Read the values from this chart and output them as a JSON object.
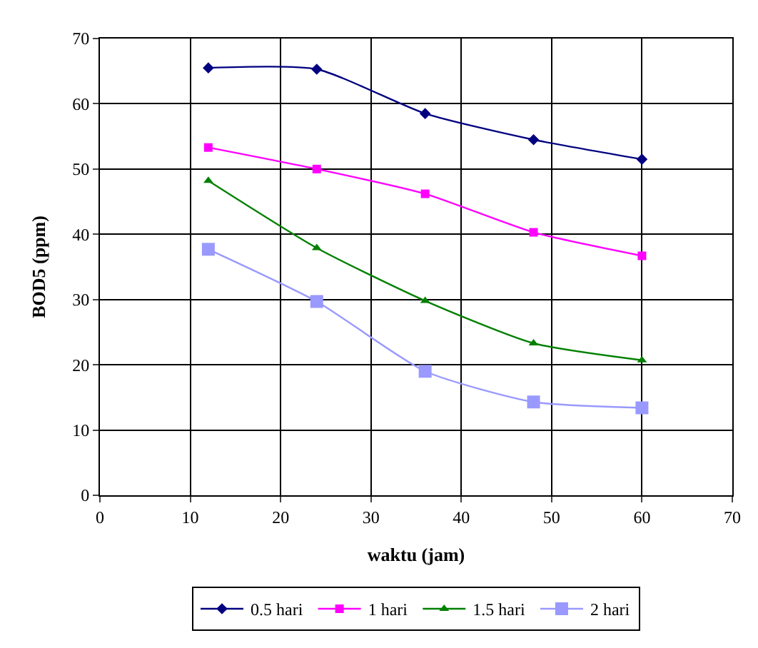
{
  "chart_data": {
    "type": "line",
    "xlabel": "waktu (jam)",
    "ylabel": "BOD5 (ppm)",
    "x": [
      12,
      24,
      36,
      48,
      60
    ],
    "series": [
      {
        "name": "0.5 hari",
        "color": "#000080",
        "marker": "diamond",
        "values": [
          65.5,
          65.3,
          58.5,
          54.5,
          51.5
        ]
      },
      {
        "name": "1 hari",
        "color": "#ff00ff",
        "marker": "square",
        "values": [
          53.3,
          50,
          46.2,
          40.3,
          36.7
        ]
      },
      {
        "name": "1.5 hari",
        "color": "#008000",
        "marker": "triangle",
        "values": [
          48.2,
          37.9,
          29.8,
          23.3,
          20.7
        ]
      },
      {
        "name": "2 hari",
        "color": "#9999ff",
        "marker": "square",
        "values": [
          37.7,
          29.7,
          19,
          14.3,
          13.4
        ]
      }
    ],
    "xlim": [
      0,
      70
    ],
    "xticks": [
      0,
      10,
      20,
      30,
      40,
      50,
      60,
      70
    ],
    "ylim": [
      0,
      70
    ],
    "yticks": [
      0,
      10,
      20,
      30,
      40,
      50,
      60,
      70
    ],
    "grid": true,
    "legend": "bottom"
  }
}
